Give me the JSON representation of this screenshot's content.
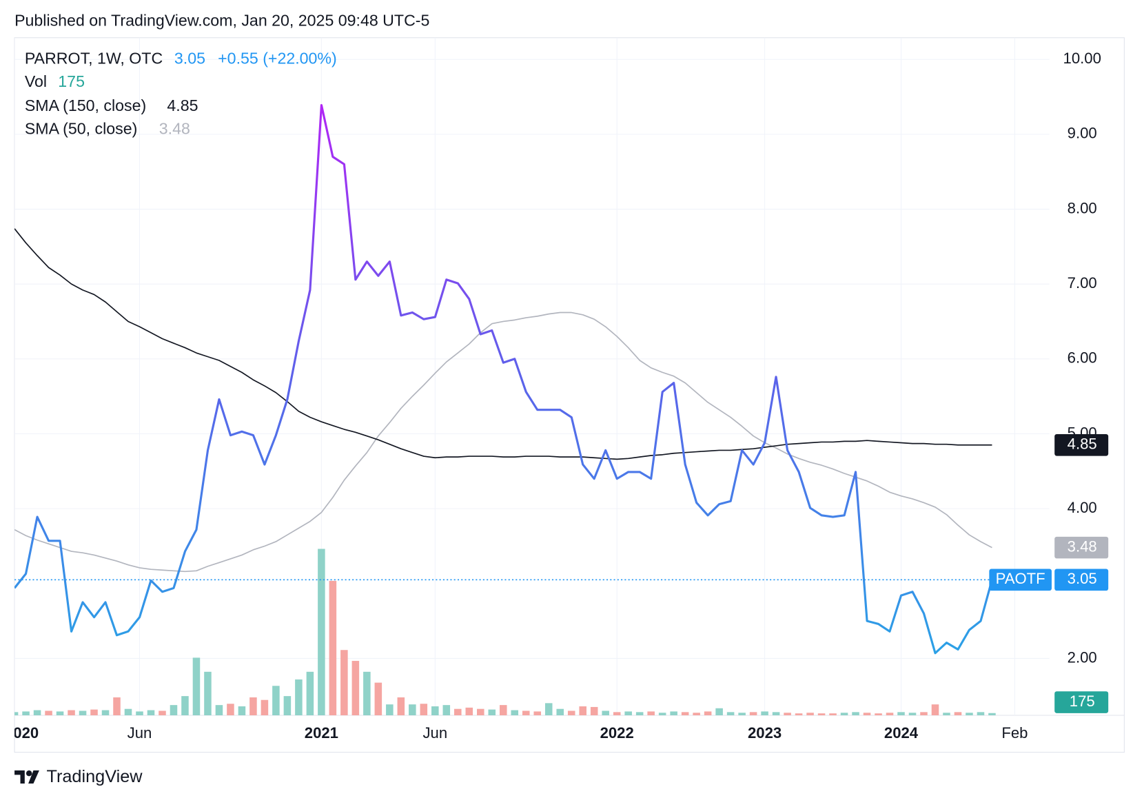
{
  "header": {
    "text": "Published on TradingView.com, Jan 20, 2025 09:48 UTC-5"
  },
  "footer": {
    "brand": "TradingView"
  },
  "chart_data": {
    "type": "line",
    "title": "PARROT, 1W, OTC",
    "change": "+0.55 (+22.00%)",
    "categories": [
      "2020",
      null,
      null,
      null,
      null,
      null,
      null,
      null,
      null,
      null,
      null,
      "Jun",
      null,
      null,
      null,
      null,
      null,
      null,
      null,
      null,
      null,
      null,
      null,
      null,
      null,
      null,
      null,
      "2021",
      null,
      null,
      null,
      null,
      null,
      null,
      null,
      null,
      null,
      "Jun",
      null,
      null,
      null,
      null,
      null,
      null,
      null,
      null,
      null,
      null,
      null,
      null,
      null,
      null,
      null,
      "2022",
      null,
      null,
      null,
      null,
      null,
      null,
      null,
      null,
      null,
      null,
      null,
      null,
      "2023",
      null,
      null,
      null,
      null,
      null,
      null,
      null,
      null,
      null,
      null,
      null,
      "2024",
      null,
      null,
      null,
      null,
      null,
      null,
      null,
      null,
      null,
      "Feb"
    ],
    "series": [
      {
        "name": "PAOTF",
        "color": "#2196f3",
        "gradient": [
          "#b026f5",
          "#5b63ea",
          "#2aa2e6"
        ],
        "values": [
          2.94,
          3.13,
          3.89,
          3.57,
          3.57,
          2.36,
          2.75,
          2.55,
          2.75,
          2.31,
          2.36,
          2.55,
          3.04,
          2.89,
          2.94,
          3.43,
          3.72,
          4.78,
          5.46,
          4.98,
          5.03,
          4.98,
          4.59,
          4.98,
          5.46,
          6.24,
          6.92,
          9.39,
          8.7,
          8.6,
          7.06,
          7.3,
          7.11,
          7.3,
          6.58,
          6.62,
          6.53,
          6.56,
          7.06,
          7.01,
          6.8,
          6.33,
          6.38,
          5.95,
          6.0,
          5.56,
          5.32,
          5.32,
          5.32,
          5.22,
          4.59,
          4.4,
          4.78,
          4.4,
          4.49,
          4.49,
          4.4,
          5.56,
          5.68,
          4.59,
          4.08,
          3.91,
          4.06,
          4.1,
          4.78,
          4.59,
          4.88,
          5.76,
          4.78,
          4.49,
          4.01,
          3.91,
          3.89,
          3.91,
          4.49,
          2.5,
          2.46,
          2.36,
          2.84,
          2.89,
          2.6,
          2.07,
          2.21,
          2.12,
          2.38,
          2.5,
          3.05,
          null,
          null
        ]
      },
      {
        "name": "SMA (150, close)",
        "color": "#131722",
        "values": [
          7.74,
          7.55,
          7.38,
          7.22,
          7.12,
          7.0,
          6.92,
          6.86,
          6.76,
          6.63,
          6.5,
          6.43,
          6.35,
          6.27,
          6.21,
          6.15,
          6.08,
          6.03,
          5.98,
          5.9,
          5.82,
          5.72,
          5.64,
          5.55,
          5.43,
          5.3,
          5.22,
          5.16,
          5.11,
          5.06,
          5.02,
          4.97,
          4.92,
          4.86,
          4.8,
          4.75,
          4.7,
          4.68,
          4.69,
          4.69,
          4.7,
          4.7,
          4.7,
          4.69,
          4.69,
          4.7,
          4.7,
          4.7,
          4.69,
          4.69,
          4.69,
          4.68,
          4.67,
          4.66,
          4.67,
          4.69,
          4.71,
          4.72,
          4.74,
          4.75,
          4.76,
          4.77,
          4.78,
          4.78,
          4.79,
          4.8,
          4.82,
          4.84,
          4.86,
          4.87,
          4.88,
          4.89,
          4.89,
          4.9,
          4.9,
          4.91,
          4.9,
          4.89,
          4.88,
          4.87,
          4.87,
          4.86,
          4.86,
          4.85,
          4.85,
          4.85,
          4.85,
          null,
          null
        ]
      },
      {
        "name": "SMA (50, close)",
        "color": "#b2b5be",
        "values": [
          3.72,
          3.64,
          3.58,
          3.53,
          3.48,
          3.43,
          3.41,
          3.38,
          3.34,
          3.3,
          3.25,
          3.21,
          3.19,
          3.18,
          3.17,
          3.16,
          3.17,
          3.23,
          3.28,
          3.33,
          3.38,
          3.45,
          3.5,
          3.56,
          3.65,
          3.74,
          3.83,
          3.95,
          4.15,
          4.38,
          4.57,
          4.75,
          4.97,
          5.15,
          5.34,
          5.5,
          5.65,
          5.81,
          5.96,
          6.08,
          6.2,
          6.35,
          6.47,
          6.5,
          6.52,
          6.55,
          6.57,
          6.6,
          6.62,
          6.62,
          6.59,
          6.53,
          6.43,
          6.3,
          6.15,
          5.98,
          5.88,
          5.82,
          5.77,
          5.68,
          5.55,
          5.42,
          5.32,
          5.22,
          5.1,
          4.97,
          4.88,
          4.81,
          4.73,
          4.67,
          4.62,
          4.58,
          4.53,
          4.47,
          4.42,
          4.37,
          4.3,
          4.22,
          4.17,
          4.13,
          4.08,
          4.02,
          3.92,
          3.78,
          3.65,
          3.56,
          3.48,
          null,
          null
        ]
      }
    ],
    "volume": {
      "name": "Vol",
      "color": "#26a69a",
      "up_color": "#8fd2c8",
      "down_color": "#f5a5a1",
      "values": [
        250,
        300,
        400,
        350,
        300,
        400,
        350,
        450,
        400,
        1400,
        500,
        300,
        400,
        350,
        800,
        1500,
        4500,
        3400,
        800,
        900,
        700,
        1400,
        1200,
        2300,
        1500,
        2800,
        3400,
        13000,
        10500,
        5100,
        4250,
        3400,
        2550,
        850,
        1400,
        850,
        900,
        700,
        800,
        500,
        600,
        500,
        450,
        800,
        400,
        350,
        300,
        950,
        500,
        350,
        700,
        650,
        350,
        250,
        300,
        250,
        300,
        200,
        300,
        250,
        200,
        300,
        550,
        250,
        200,
        250,
        300,
        250,
        200,
        150,
        200,
        150,
        150,
        200,
        250,
        200,
        150,
        200,
        250,
        200,
        250,
        850,
        200,
        250,
        200,
        250,
        175,
        null,
        null
      ]
    },
    "vlim": [
      0,
      17000
    ],
    "ylim": [
      1.24,
      10.29
    ],
    "yticks": [
      {
        "value": 2,
        "label": "2.00"
      },
      {
        "value": 4,
        "label": "4.00"
      },
      {
        "value": 5,
        "label": "5.00"
      },
      {
        "value": 6,
        "label": "6.00"
      },
      {
        "value": 7,
        "label": "7.00"
      },
      {
        "value": 8,
        "label": "8.00"
      },
      {
        "value": 9,
        "label": "9.00"
      },
      {
        "value": 10,
        "label": "10.00"
      }
    ],
    "grid": true
  }
}
